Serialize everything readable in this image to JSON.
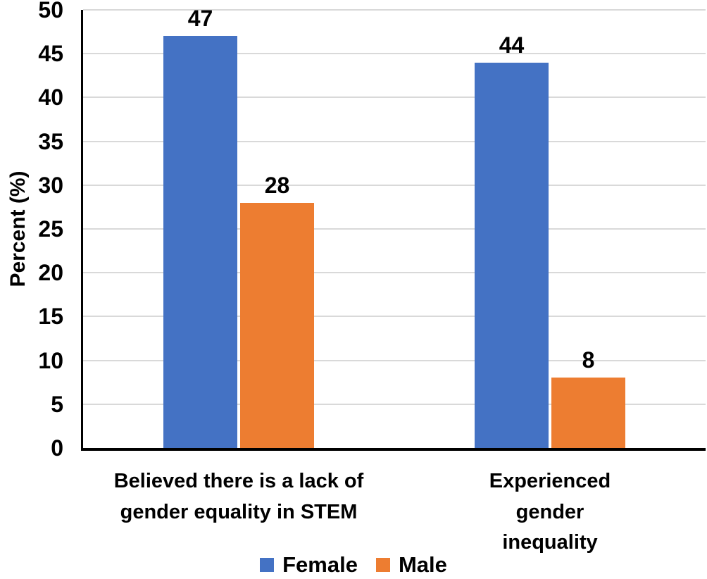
{
  "chart_data": {
    "type": "bar",
    "title": "",
    "categories": [
      "Believed there is a lack of\ngender equality in STEM",
      "Experienced gender\ninequality"
    ],
    "series": [
      {
        "name": "Female",
        "color": "#4472C4",
        "values": [
          47,
          44
        ]
      },
      {
        "name": "Male",
        "color": "#ED7D31",
        "values": [
          28,
          8
        ]
      }
    ],
    "xlabel": "",
    "ylabel": "Percent (%)",
    "ylim": [
      0,
      50
    ],
    "yticks": [
      0,
      5,
      10,
      15,
      20,
      25,
      30,
      35,
      40,
      45,
      50
    ],
    "grid": "horizontal",
    "legend_position": "bottom center",
    "value_labels_shown": true
  },
  "colors": {
    "female_bar": "#4472C4",
    "male_bar": "#ED7D31",
    "gridline": "#D9D9D9",
    "axis_line": "#000000",
    "text": "#000000",
    "background": "#FFFFFF"
  }
}
